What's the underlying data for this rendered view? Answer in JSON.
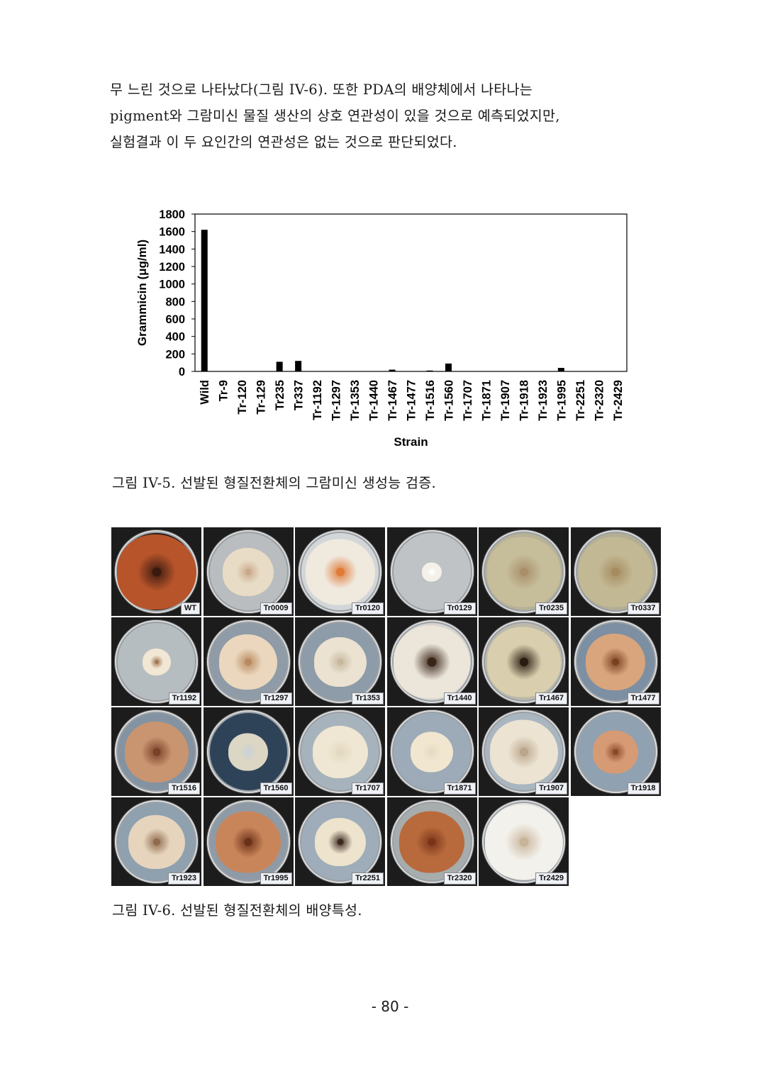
{
  "body_lines": [
    "무 느린 것으로 나타났다(그림 IV-6). 또한 PDA의 배양체에서 나타나는",
    "pigment와 그람미신 물질 생산의 상호 연관성이 있을 것으로 예측되었지만,",
    "실험결과 이 두 요인간의 연관성은 없는 것으로 판단되었다."
  ],
  "chart_data": {
    "type": "bar",
    "ylabel": "Grammicin (μg/ml)",
    "xlabel": "Strain",
    "ylim": [
      0,
      1800
    ],
    "yticks": [
      0,
      200,
      400,
      600,
      800,
      1000,
      1200,
      1400,
      1600,
      1800
    ],
    "grid": false,
    "legend": false,
    "bar_color": "#000000",
    "categories": [
      "Wild",
      "Tr-9",
      "Tr-120",
      "Tr-129",
      "Tr235",
      "Tr337",
      "Tr-1192",
      "Tr-1297",
      "Tr-1353",
      "Tr-1440",
      "Tr-1467",
      "Tr-1477",
      "Tr-1516",
      "Tr-1560",
      "Tr-1707",
      "Tr-1871",
      "Tr-1907",
      "Tr-1918",
      "Tr-1923",
      "Tr-1995",
      "Tr-2251",
      "Tr-2320",
      "Tr-2429"
    ],
    "values": [
      1620,
      0,
      0,
      0,
      110,
      120,
      0,
      0,
      0,
      0,
      20,
      0,
      10,
      90,
      0,
      0,
      0,
      0,
      0,
      40,
      0,
      0,
      0
    ]
  },
  "figure5_caption": "그림 IV-5. 선발된 형질전환체의 그람미신 생성능 검증.",
  "plates": [
    {
      "label": "WT",
      "agar": "#2a1e18",
      "colony": "#b8542a",
      "size": 112,
      "center": "#3a1a10"
    },
    {
      "label": "Tr0009",
      "agar": "#b9bdbf",
      "colony": "#e8dcc6",
      "size": 72,
      "center": "#c9a98a"
    },
    {
      "label": "Tr0120",
      "agar": "#d3d6d8",
      "colony": "#efe9de",
      "size": 98,
      "center": "#e07a38"
    },
    {
      "label": "Tr0129",
      "agar": "#bfc3c5",
      "colony": "#f4f1ea",
      "size": 28,
      "center": "#ffffff"
    },
    {
      "label": "Tr0235",
      "agar": "#b7b196",
      "colony": "#c6bd9a",
      "size": 104,
      "center": "#a98e6a"
    },
    {
      "label": "Tr0337",
      "agar": "#b3ae93",
      "colony": "#c2b994",
      "size": 104,
      "center": "#a68a60"
    },
    {
      "label": "Tr1192",
      "agar": "#b6bdc1",
      "colony": "#f1e7d4",
      "size": 40,
      "center": "#a07450"
    },
    {
      "label": "Tr1297",
      "agar": "#8f9ba6",
      "colony": "#ead7bd",
      "size": 82,
      "center": "#b88a60"
    },
    {
      "label": "Tr1353",
      "agar": "#8d9ca8",
      "colony": "#ebe2d2",
      "size": 74,
      "center": "#c7b79c"
    },
    {
      "label": "Tr1440",
      "agar": "#d6d4cf",
      "colony": "#ece6da",
      "size": 108,
      "center": "#3a2418"
    },
    {
      "label": "Tr1467",
      "agar": "#bcb8aa",
      "colony": "#d9cfae",
      "size": 104,
      "center": "#2a1a10"
    },
    {
      "label": "Tr1477",
      "agar": "#7c8fa3",
      "colony": "#d8a57c",
      "size": 84,
      "center": "#7a4020"
    },
    {
      "label": "Tr1516",
      "agar": "#8393a2",
      "colony": "#c99470",
      "size": 90,
      "center": "#7a4028"
    },
    {
      "label": "Tr1560",
      "agar": "#2f4358",
      "colony": "#dcd6c4",
      "size": 56,
      "center": "#c9d2d8"
    },
    {
      "label": "Tr1707",
      "agar": "#a7b3bc",
      "colony": "#efe7d3",
      "size": 78,
      "center": "#e3d8c0"
    },
    {
      "label": "Tr1871",
      "agar": "#9cabb7",
      "colony": "#f1e6cf",
      "size": 60,
      "center": "#e7dbc2"
    },
    {
      "label": "Tr1907",
      "agar": "#a9b6c0",
      "colony": "#ece3d2",
      "size": 96,
      "center": "#bba58a"
    },
    {
      "label": "Tr1918",
      "agar": "#90a1b1",
      "colony": "#d69a74",
      "size": 64,
      "center": "#8a4a28"
    },
    {
      "label": "Tr1923",
      "agar": "#8fa0ae",
      "colony": "#e6d4bd",
      "size": 80,
      "center": "#8f6a4c"
    },
    {
      "label": "Tr1995",
      "agar": "#8e9aa6",
      "colony": "#c9855a",
      "size": 92,
      "center": "#6a3018"
    },
    {
      "label": "Tr2251",
      "agar": "#9eadb9",
      "colony": "#eee3cd",
      "size": 72,
      "center": "#3c2a20"
    },
    {
      "label": "Tr2320",
      "agar": "#a7acad",
      "colony": "#b86a3c",
      "size": 92,
      "center": "#7a3418"
    },
    {
      "label": "Tr2429",
      "agar": "#e4e3df",
      "colony": "#f3f1ec",
      "size": 110,
      "center": "#c8b49a"
    }
  ],
  "figure6_caption": "그림 IV-6. 선발된 형질전환체의 배양특성.",
  "page_number": "- 80 -"
}
